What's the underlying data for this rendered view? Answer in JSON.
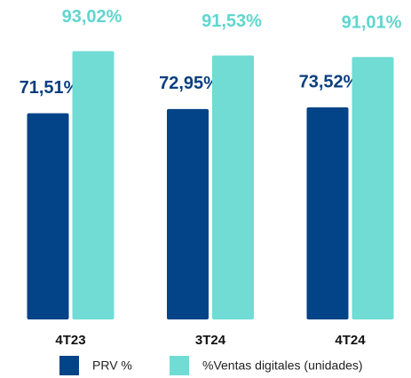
{
  "chart_data": {
    "type": "bar",
    "categories": [
      "4T23",
      "3T24",
      "4T24"
    ],
    "series": [
      {
        "name": "PRV %",
        "color": "#034387",
        "label_color": "#0a3f7f",
        "values": [
          71.51,
          72.95,
          73.52
        ],
        "value_labels": [
          "71,51%",
          "72,95%",
          "73,52%"
        ]
      },
      {
        "name": "%Ventas digitales (unidades)",
        "color": "#70dcd4",
        "label_color": "#5fd6ce",
        "values": [
          93.02,
          91.53,
          91.01
        ],
        "value_labels": [
          "93,02%",
          "91,53%",
          "91,01%"
        ]
      }
    ]
  }
}
